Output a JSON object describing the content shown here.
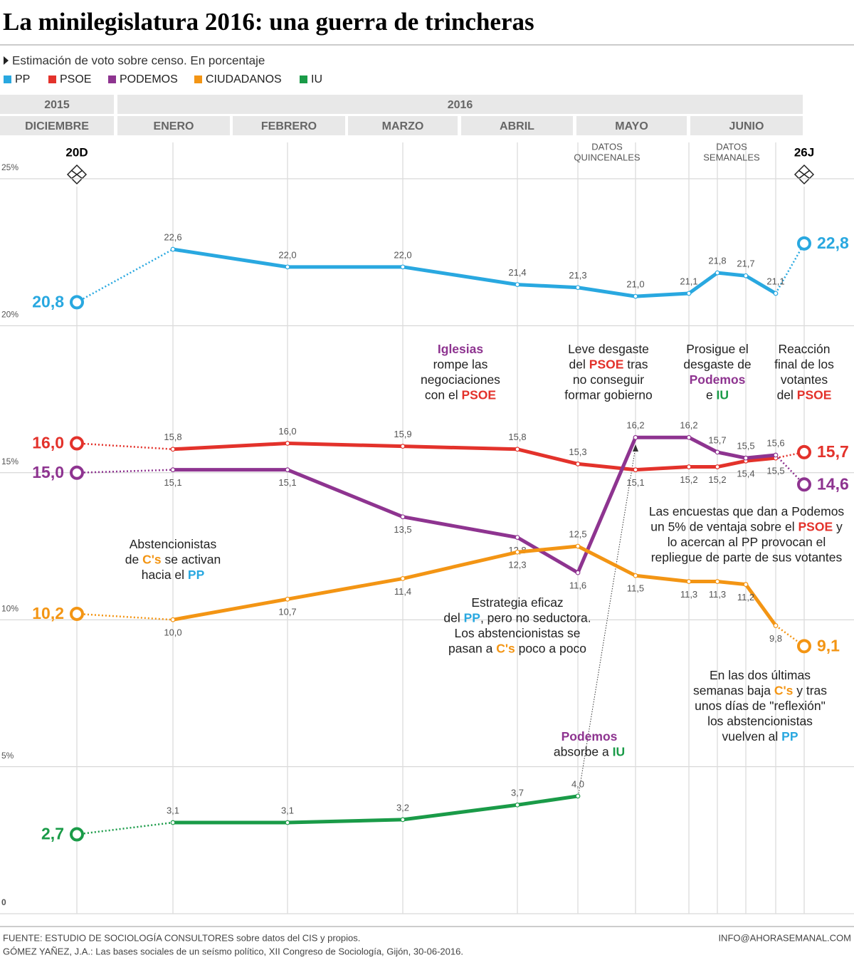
{
  "chart_data": {
    "type": "line",
    "title": "La minilegislatura 2016: una guerra de trincheras",
    "subtitle": "Estimación de voto sobre censo. En porcentaje",
    "header": {
      "years": [
        "2015",
        "2016"
      ],
      "months": [
        "DICIEMBRE",
        "ENERO",
        "FEBRERO",
        "MARZO",
        "ABRIL",
        "MAYO",
        "JUNIO"
      ]
    },
    "notes": [
      [
        "DATOS",
        "QUINCENALES"
      ],
      [
        "DATOS",
        "SEMANALES"
      ]
    ],
    "categories": [
      "20D",
      null,
      null,
      null,
      null,
      null,
      null,
      null,
      null,
      null,
      null,
      "26J"
    ],
    "ylim": [
      0,
      25
    ],
    "yticks": [
      0,
      {
        "value": 5,
        "label": "5%"
      },
      {
        "value": 10,
        "label": "10%"
      },
      {
        "value": 15,
        "label": "15%"
      },
      {
        "value": 20,
        "label": "20%"
      },
      {
        "value": 25,
        "label": "25%"
      }
    ],
    "grid": true,
    "series": [
      {
        "name": "PP",
        "color": "#29a8e0",
        "values": [
          20.8,
          22.6,
          22.0,
          22.0,
          21.4,
          21.3,
          21.0,
          21.1,
          21.8,
          21.7,
          21.1,
          22.8
        ],
        "value_labels": [
          "20,8",
          "22,6",
          "22,0",
          "22,0",
          "21,4",
          "21,3",
          "21,0",
          "21,1",
          "21,8",
          "21,7",
          "21,1",
          "22,8"
        ]
      },
      {
        "name": "PSOE",
        "color": "#e3322b",
        "values": [
          16.0,
          15.8,
          16.0,
          15.9,
          15.8,
          15.3,
          15.1,
          15.2,
          15.2,
          15.4,
          15.5,
          15.7
        ],
        "value_labels": [
          "16,0",
          "15,8",
          "16,0",
          "15,9",
          "15,8",
          "15,3",
          "15,1",
          "15,2",
          "15,2",
          "15,4",
          "15,5",
          "15,7"
        ]
      },
      {
        "name": "PODEMOS",
        "color": "#8e3490",
        "values": [
          15.0,
          15.1,
          15.1,
          13.5,
          12.8,
          11.6,
          16.2,
          16.2,
          15.7,
          15.5,
          15.6,
          14.6
        ],
        "value_labels": [
          "15,0",
          "15,1",
          "15,1",
          "13,5",
          "12,8",
          "11,6",
          "16,2",
          "16,2",
          "15,7",
          "15,5",
          "15,6",
          "14,6"
        ]
      },
      {
        "name": "CIUDADANOS",
        "color": "#f39514",
        "values": [
          10.2,
          10.0,
          10.7,
          11.4,
          12.3,
          12.5,
          11.5,
          11.3,
          11.3,
          11.2,
          9.8,
          9.1
        ],
        "value_labels": [
          "10,2",
          "10,0",
          "10,7",
          "11,4",
          "12,3",
          "12,5",
          "11,5",
          "11,3",
          "11,3",
          "11,2",
          "9,8",
          "9,1"
        ]
      },
      {
        "name": "IU",
        "color": "#1a9b48",
        "values": [
          2.7,
          3.1,
          3.1,
          3.2,
          3.7,
          4.0,
          null,
          null,
          null,
          null,
          null,
          null
        ],
        "value_labels": [
          "2,7",
          "3,1",
          "3,1",
          "3,2",
          "3,7",
          "4,0",
          null,
          null,
          null,
          null,
          null,
          null
        ]
      }
    ],
    "annotations": [
      {
        "lines": [
          [
            {
              "text": "Iglesias",
              "color": "#8e3490"
            }
          ],
          [
            "rompe las"
          ],
          [
            "negociaciones"
          ],
          [
            "con el ",
            {
              "text": "PSOE",
              "color": "#e3322b"
            }
          ]
        ]
      },
      {
        "lines": [
          [
            "Leve desgaste"
          ],
          [
            "del ",
            {
              "text": "PSOE",
              "color": "#e3322b"
            },
            " tras"
          ],
          [
            "no conseguir"
          ],
          [
            "formar gobierno"
          ]
        ]
      },
      {
        "lines": [
          [
            "Prosigue el"
          ],
          [
            "desgaste de"
          ],
          [
            {
              "text": "Podemos",
              "color": "#8e3490"
            }
          ],
          [
            "e ",
            {
              "text": "IU",
              "color": "#1a9b48"
            }
          ]
        ]
      },
      {
        "lines": [
          [
            "Reacción"
          ],
          [
            "final de los"
          ],
          [
            "votantes"
          ],
          [
            "del ",
            {
              "text": "PSOE",
              "color": "#e3322b"
            }
          ]
        ]
      },
      {
        "lines": [
          [
            "Las encuestas que dan a Podemos"
          ],
          [
            "un 5% de ventaja sobre el ",
            {
              "text": "PSOE",
              "color": "#e3322b"
            },
            " y"
          ],
          [
            "lo acercan al PP provocan el"
          ],
          [
            "repliegue de parte de sus votantes"
          ]
        ]
      },
      {
        "lines": [
          [
            "Abstencionistas"
          ],
          [
            "de ",
            {
              "text": "C's",
              "color": "#f39514"
            },
            " se activan"
          ],
          [
            "hacia el ",
            {
              "text": "PP",
              "color": "#29a8e0"
            }
          ]
        ]
      },
      {
        "lines": [
          [
            "Estrategia eficaz"
          ],
          [
            "del ",
            {
              "text": "PP",
              "color": "#29a8e0"
            },
            ", pero no seductora."
          ],
          [
            "Los abstencionistas se"
          ],
          [
            "pasan a ",
            {
              "text": "C's",
              "color": "#f39514"
            },
            " poco a poco"
          ]
        ]
      },
      {
        "lines": [
          [
            "En las dos últimas"
          ],
          [
            "semanas baja ",
            {
              "text": "C's",
              "color": "#f39514"
            },
            " y tras"
          ],
          [
            "unos días de \"reflexión\""
          ],
          [
            "los abstencionistas"
          ],
          [
            "vuelven al ",
            {
              "text": "PP",
              "color": "#29a8e0"
            }
          ]
        ]
      },
      {
        "lines": [
          [
            {
              "text": "Podemos",
              "color": "#8e3490"
            }
          ],
          [
            "absorbe a ",
            {
              "text": "IU",
              "color": "#1a9b48"
            }
          ]
        ]
      }
    ],
    "footer": {
      "source": [
        "FUENTE: ESTUDIO DE SOCIOLOGÍA CONSULTORES sobre datos del CIS y propios.",
        "GÓMEZ YAÑEZ, J.A.: Las bases sociales de un seísmo político, XII Congreso de Sociología, Gijón, 30-06-2016."
      ],
      "contact": "INFO@AHORASEMANAL.COM"
    }
  }
}
